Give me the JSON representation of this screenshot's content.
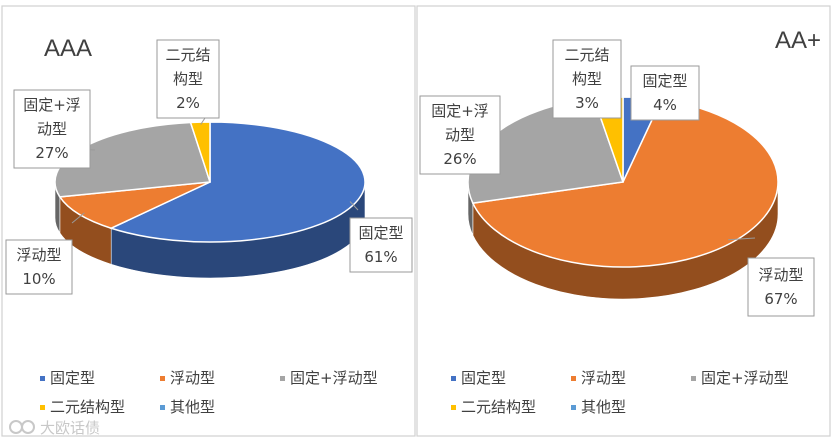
{
  "watermark": "大欧话债",
  "colors": {
    "固定型": "#4472C4",
    "浮动型": "#ED7D31",
    "固定+浮动型": "#A5A5A5",
    "二元结构型": "#FFC000",
    "其他型": "#5B9BD5"
  },
  "chart_data": [
    {
      "type": "pie",
      "title": "AAA",
      "slices": [
        {
          "label": "固定型",
          "label_lines": [
            "固定型"
          ],
          "pct_label": "61%",
          "value": 61
        },
        {
          "label": "浮动型",
          "label_lines": [
            "浮动型"
          ],
          "pct_label": "10%",
          "value": 10
        },
        {
          "label": "固定+浮动型",
          "label_lines": [
            "固定+浮",
            "动型"
          ],
          "pct_label": "27%",
          "value": 27
        },
        {
          "label": "二元结构型",
          "label_lines": [
            "二元结",
            "构型"
          ],
          "pct_label": "2%",
          "value": 2
        }
      ],
      "legend": {
        "items": [
          "固定型",
          "浮动型",
          "固定+浮动型",
          "二元结构型",
          "其他型"
        ],
        "position": "bottom"
      }
    },
    {
      "type": "pie",
      "title": "AA+",
      "slices": [
        {
          "label": "固定型",
          "label_lines": [
            "固定型"
          ],
          "pct_label": "4%",
          "value": 4
        },
        {
          "label": "浮动型",
          "label_lines": [
            "浮动型"
          ],
          "pct_label": "67%",
          "value": 67
        },
        {
          "label": "固定+浮动型",
          "label_lines": [
            "固定+浮",
            "动型"
          ],
          "pct_label": "26%",
          "value": 26
        },
        {
          "label": "二元结构型",
          "label_lines": [
            "二元结",
            "构型"
          ],
          "pct_label": "3%",
          "value": 3
        }
      ],
      "legend": {
        "items": [
          "固定型",
          "浮动型",
          "固定+浮动型",
          "二元结构型",
          "其他型"
        ],
        "position": "bottom"
      }
    }
  ]
}
